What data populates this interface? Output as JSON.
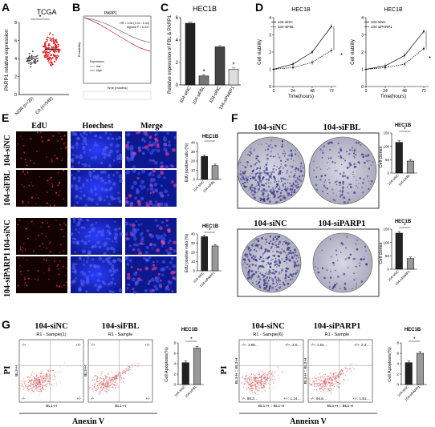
{
  "panel_letters": [
    "A",
    "B",
    "C",
    "D",
    "E",
    "F",
    "G"
  ],
  "panelA": {
    "title": "TCGA",
    "ylabel": "PARP1 relative expression",
    "categories": [
      "NOR (n=35)",
      "CA (n=548)"
    ],
    "yticks": [
      "0",
      "2",
      "4",
      "6",
      "8"
    ],
    "sig": "*",
    "chart_data": {
      "type": "scatter",
      "categories": [
        "NOR (n=35)",
        "CA (n=548)"
      ],
      "means": [
        4.0,
        5.0
      ],
      "ylim": [
        0,
        8
      ]
    }
  },
  "panelB": {
    "title": "PARP1",
    "hr_line1": "HR = 1.08 (1.02 - 2.44)",
    "hr_line2": "logrank P = 0.037",
    "legend_title": "Expression",
    "legend_low": "low",
    "legend_high": "high",
    "ylabel": "Probability",
    "xlabel": "Time (months)"
  },
  "panelC": {
    "title": "HEC1B",
    "ylabel": "Relative expression of FBL & PARP1",
    "yticks": [
      "0",
      "2",
      "4",
      "6"
    ],
    "sig": "*",
    "chart_data": {
      "type": "bar",
      "categories": [
        "104-siNC",
        "104-siFBL",
        "104-siNC",
        "104-siPARP1"
      ],
      "values": [
        5.5,
        0.8,
        3.4,
        1.4
      ],
      "ylim": [
        0,
        6
      ]
    }
  },
  "panelD": {
    "title_left": "HEC1B",
    "title_right": "HEC1B",
    "ylabel": "Cell viability",
    "xlabel": "Time(hours)",
    "xticks": [
      "0",
      "24",
      "48",
      "72"
    ],
    "yticks": [
      "0",
      "1",
      "2",
      "3",
      "4"
    ],
    "legend_left": [
      "104-siNC",
      "104-siFBL"
    ],
    "legend_right": [
      "104-siNC",
      "104-siPARP1"
    ],
    "sig": "*",
    "chart_data": [
      {
        "type": "line",
        "x": [
          0,
          24,
          48,
          72
        ],
        "series": [
          {
            "name": "104-siNC",
            "values": [
              1.0,
              1.3,
              2.0,
              3.5
            ]
          },
          {
            "name": "104-siFBL",
            "values": [
              1.0,
              1.1,
              1.4,
              2.1
            ]
          }
        ],
        "ylim": [
          0,
          4
        ]
      },
      {
        "type": "line",
        "x": [
          0,
          24,
          48,
          72
        ],
        "series": [
          {
            "name": "104-siNC",
            "values": [
              1.0,
              1.2,
              1.8,
              3.2
            ]
          },
          {
            "name": "104-siPARP1",
            "values": [
              1.0,
              1.1,
              1.3,
              2.2
            ]
          }
        ],
        "ylim": [
          0,
          4
        ]
      }
    ]
  },
  "panelE": {
    "headers": [
      "EdU",
      "Hoechest",
      "Merge"
    ],
    "rows": [
      "104-siNC",
      "104-siFBL",
      "104-siNC",
      "104-siPARP1"
    ],
    "chart_title_1": "HEC1B",
    "chart_title_2": "HEC1B",
    "ylabel": "EdU positive ratio (%)",
    "yticks": [
      "0",
      "10",
      "20",
      "30",
      "40"
    ],
    "cats1": [
      "104-siNC",
      "104-siFBL"
    ],
    "cats2": [
      "104-siNC",
      "104-siPARP1"
    ],
    "sig": "*",
    "chart_data": [
      {
        "type": "bar",
        "categories": [
          "104-siNC",
          "104-siFBL"
        ],
        "values": [
          25,
          15
        ],
        "ylim": [
          0,
          40
        ]
      },
      {
        "type": "bar",
        "categories": [
          "104-siNC",
          "104-siPARP1"
        ],
        "values": [
          37,
          27
        ],
        "ylim": [
          0,
          40
        ]
      }
    ]
  },
  "panelF": {
    "labels_top": [
      "104-siNC",
      "104-siFBL"
    ],
    "labels_bottom": [
      "104-siNC",
      "104-siPARP1"
    ],
    "chart_title_1": "HEC1B",
    "chart_title_2": "HEC1B",
    "ylabel": "Cell clones",
    "yticks1": [
      "0",
      "50",
      "100",
      "150"
    ],
    "yticks2": [
      "0",
      "50",
      "100",
      "150"
    ],
    "cats1": [
      "104-siNC",
      "104-siFBL"
    ],
    "cats2": [
      "104-siNC",
      "104-siPARP1"
    ],
    "sig": "*",
    "chart_data": [
      {
        "type": "bar",
        "categories": [
          "104-siNC",
          "104-siFBL"
        ],
        "values": [
          115,
          45
        ],
        "ylim": [
          0,
          150
        ]
      },
      {
        "type": "bar",
        "categories": [
          "104-siNC",
          "104-siPARP1"
        ],
        "values": [
          135,
          40
        ],
        "ylim": [
          0,
          150
        ]
      }
    ]
  },
  "panelG": {
    "titles": [
      "104-siNC",
      "104-siFBL",
      "104-siNC",
      "104-siPARP1"
    ],
    "subtitles": [
      "R1 - Sample(1)",
      "R1 - Sample",
      "R1 - Sample(6)",
      "R1 - Sample"
    ],
    "pi_label": "PI",
    "annexin_label": "Anexin V",
    "annexin_label2": "Anneixn V",
    "bl3": "BL3-H",
    "bl1": "BL1-H",
    "bl1b": "BL1-H :: BL1-H",
    "bl3b": "BL3-H :: BL3-H",
    "quads1": [
      "-/+",
      "+/+",
      "-/-",
      "+/-"
    ],
    "quads2": [
      "-/+",
      "+/+",
      "-/-",
      "+/-"
    ],
    "quads3": [
      "-/+: 1.56…",
      "+/+: 2.0…",
      "-/-: 95.2…",
      "+/-: 1.14…"
    ],
    "quads4": [
      "-/+: 1.01…",
      "+/+: 2.3…",
      "-/-: 94.8…",
      "+/-: 1.81…"
    ],
    "chart_title_1": "HEC1B",
    "chart_title_2": "HEC1B",
    "ylabel": "Cell Apoptosis(%)",
    "yticks": [
      "0",
      "2",
      "4",
      "6",
      "8"
    ],
    "cats1": [
      "104-siNC",
      "104-siFBL"
    ],
    "cats2": [
      "104-siNC",
      "104-siPARP1"
    ],
    "sig": "*",
    "chart_data": [
      {
        "type": "bar",
        "categories": [
          "104-siNC",
          "104-siFBL"
        ],
        "values": [
          4.2,
          7.0
        ],
        "ylim": [
          0,
          8
        ]
      },
      {
        "type": "bar",
        "categories": [
          "104-siNC",
          "104-siPARP1"
        ],
        "values": [
          4.2,
          6.0
        ],
        "ylim": [
          0,
          8
        ]
      }
    ]
  }
}
